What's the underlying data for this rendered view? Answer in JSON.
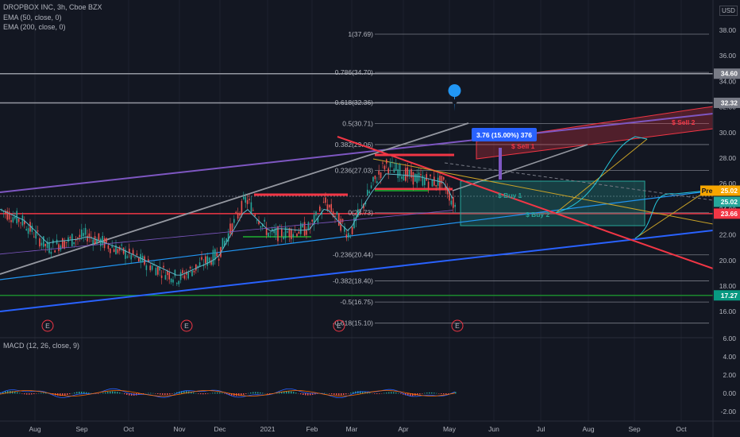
{
  "header": {
    "symbol_line": "DROPBOX INC, 3h, Cboe BZX",
    "indicators": [
      "EMA (50, close, 0)",
      "EMA (200, close, 0)"
    ],
    "currency": "USD",
    "macd_label": "MACD (12, 26, close, 9)"
  },
  "chart_data": {
    "type": "line",
    "y_axis": {
      "min": 16.0,
      "max": 38.0,
      "ticks": [
        38.0,
        36.0,
        34.0,
        32.0,
        30.0,
        28.0,
        26.0,
        24.0,
        22.0,
        20.0,
        18.0,
        16.0
      ]
    },
    "y_tick_labels": [
      "38.00",
      "36.00",
      "34.00",
      "32.00",
      "30.00",
      "28.00",
      "26.00",
      "24.00",
      "22.00",
      "20.00",
      "18.00",
      "16.00"
    ],
    "macd_axis": {
      "ticks": [
        6.0,
        4.0,
        2.0,
        0.0,
        -2.0
      ],
      "labels": [
        "6.00",
        "4.00",
        "2.00",
        "0.00",
        "-2.00"
      ]
    },
    "x_labels": [
      "Aug",
      "Sep",
      "Oct",
      "Nov",
      "Dec",
      "2021",
      "Feb",
      "Mar",
      "Apr",
      "May",
      "Jun",
      "Jul",
      "Aug",
      "Sep",
      "Oct"
    ],
    "fib_levels": [
      {
        "label": "1(37.69)",
        "value": 37.69
      },
      {
        "label": "0.786(34.70)",
        "value": 34.7
      },
      {
        "label": "0.618(32.36)",
        "value": 32.36
      },
      {
        "label": "0.5(30.71)",
        "value": 30.71
      },
      {
        "label": "0.382(29.06)",
        "value": 29.06
      },
      {
        "label": "0.236(27.03)",
        "value": 27.03
      },
      {
        "label": "0(23.73)",
        "value": 23.73
      },
      {
        "label": "-0.236(20.44)",
        "value": 20.44
      },
      {
        "label": "-0.382(18.40)",
        "value": 18.4
      },
      {
        "label": "-0.5(16.75)",
        "value": 16.75
      },
      {
        "label": "-0.618(15.10)",
        "value": 15.1
      }
    ],
    "price_badges": [
      {
        "label": "34.60",
        "value": 34.6,
        "color": "#787b86"
      },
      {
        "label": "32.32",
        "value": 32.32,
        "color": "#787b86"
      },
      {
        "label": "25.02",
        "value": 25.02,
        "color": "#f7a600",
        "prefix": "Pre"
      },
      {
        "label": "25.02",
        "value": 25.02,
        "color": "#26a69a"
      },
      {
        "label": "23.66",
        "value": 23.66,
        "color": "#f23645"
      },
      {
        "label": "17.27",
        "value": 17.27,
        "color": "#089981"
      }
    ],
    "horizontal_lines": [
      {
        "value": 34.6,
        "color": "#9598a1"
      },
      {
        "value": 32.32,
        "color": "#9598a1"
      },
      {
        "value": 23.66,
        "color": "#f23645"
      },
      {
        "value": 17.27,
        "color": "#1b8a2d"
      }
    ],
    "annotations": {
      "measure_box": "3.76 (15.00%) 376",
      "sell1": "$ Sell 1",
      "sell2": "$ Sell 2",
      "buy1": "$ Buy 1",
      "buy2": "$ Buy 2"
    },
    "earnings_markers": [
      "E",
      "E",
      "E",
      "E"
    ],
    "colors": {
      "up": "#26a69a",
      "down": "#ef5350",
      "ema50": "#5fb8c9",
      "ema200": "#7e57c2",
      "background": "#131722"
    }
  }
}
